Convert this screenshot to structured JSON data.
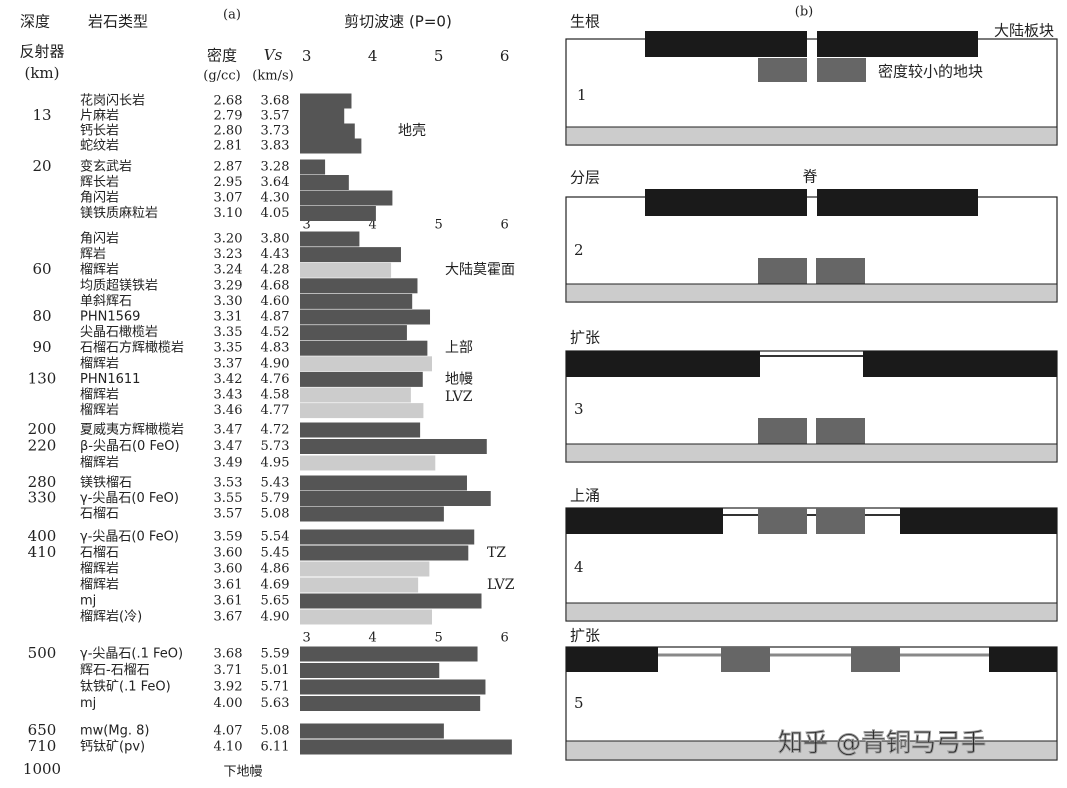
{
  "chart_data": {
    "type": "bar",
    "panel_label": "(a)",
    "title": "剪切波速 (P=0)",
    "headers": {
      "depth": "深度",
      "rock": "岩石类型",
      "reflector": "反射器",
      "km": "(km)",
      "density": "密度",
      "density_unit": "(g/cc)",
      "vs": "Vs",
      "vs_unit": "(km/s)"
    },
    "xlim": [
      2.9,
      6.1
    ],
    "xticks": [
      3,
      4,
      5,
      6
    ],
    "groups": [
      {
        "rows": [
          {
            "rock": "花岗闪长岩",
            "density": "2.68",
            "value": 3.68,
            "color": "#555555"
          },
          {
            "rock": "片麻岩",
            "density": "2.79",
            "value": 3.57,
            "color": "#555555",
            "depth": 13
          },
          {
            "rock": "钙长岩",
            "density": "2.80",
            "value": 3.73,
            "color": "#555555"
          },
          {
            "rock": "蛇纹岩",
            "density": "2.81",
            "value": 3.83,
            "color": "#555555"
          }
        ]
      },
      {
        "rows": [
          {
            "rock": "变玄武岩",
            "density": "2.87",
            "value": 3.28,
            "color": "#555555",
            "depth": 20
          },
          {
            "rock": "辉长岩",
            "density": "2.95",
            "value": 3.64,
            "color": "#555555"
          },
          {
            "rock": "角闪岩",
            "density": "3.07",
            "value": 4.3,
            "value_label": "4.30",
            "color": "#555555"
          },
          {
            "rock": "镁铁质麻粒岩",
            "density": "3.10",
            "value": 4.05,
            "color": "#555555"
          }
        ]
      },
      {
        "rows": [
          {
            "rock": "角闪岩",
            "density": "3.20",
            "value": 3.8,
            "value_label": "3.80",
            "color": "#555555"
          },
          {
            "rock": "辉岩",
            "density": "3.23",
            "value": 4.43,
            "color": "#555555"
          },
          {
            "rock": "榴辉岩",
            "density": "3.24",
            "value": 4.28,
            "color": "#cccccc",
            "depth": 60
          },
          {
            "rock": "均质超镁铁岩",
            "density": "3.29",
            "value": 4.68,
            "color": "#555555"
          },
          {
            "rock": "单斜辉石",
            "density": "3.30",
            "value": 4.6,
            "value_label": "4.60",
            "color": "#555555"
          },
          {
            "rock": "PHN1569",
            "density": "3.31",
            "value": 4.87,
            "color": "#555555",
            "depth": 80
          },
          {
            "rock": "尖晶石橄榄岩",
            "density": "3.35",
            "value": 4.52,
            "color": "#555555"
          },
          {
            "rock": "石榴石方辉橄榄岩",
            "density": "3.35",
            "value": 4.83,
            "color": "#555555",
            "depth": 90
          },
          {
            "rock": "榴辉岩",
            "density": "3.37",
            "value": 4.9,
            "value_label": "4.90",
            "color": "#cccccc"
          },
          {
            "rock": "PHN1611",
            "density": "3.42",
            "value": 4.76,
            "color": "#555555",
            "depth": 130
          },
          {
            "rock": "榴辉岩",
            "density": "3.43",
            "value": 4.58,
            "color": "#cccccc"
          },
          {
            "rock": "榴辉岩",
            "density": "3.46",
            "value": 4.77,
            "color": "#cccccc"
          }
        ]
      },
      {
        "rows": [
          {
            "rock": "夏威夷方辉橄榄岩",
            "density": "3.47",
            "value": 4.72,
            "color": "#555555",
            "depth": 200
          },
          {
            "rock": "β-尖晶石(0 FeO)",
            "density": "3.47",
            "value": 5.73,
            "color": "#555555",
            "depth": 220
          },
          {
            "rock": "榴辉岩",
            "density": "3.49",
            "value": 4.95,
            "color": "#cccccc"
          }
        ]
      },
      {
        "rows": [
          {
            "rock": "镁铁榴石",
            "density": "3.53",
            "value": 5.43,
            "color": "#555555",
            "depth": 280
          },
          {
            "rock": "γ-尖晶石(0 FeO)",
            "density": "3.55",
            "value": 5.79,
            "color": "#555555",
            "depth": 330
          },
          {
            "rock": "石榴石",
            "density": "3.57",
            "value": 5.08,
            "color": "#555555"
          }
        ]
      },
      {
        "rows": [
          {
            "rock": "γ-尖晶石(0 FeO)",
            "density": "3.59",
            "value": 5.54,
            "color": "#555555",
            "depth": 400
          },
          {
            "rock": "石榴石",
            "density": "3.60",
            "value": 5.45,
            "color": "#555555",
            "depth": 410
          },
          {
            "rock": "榴辉岩",
            "density": "3.60",
            "value": 4.86,
            "color": "#cccccc"
          },
          {
            "rock": "榴辉岩",
            "density": "3.61",
            "value": 4.69,
            "color": "#cccccc"
          },
          {
            "rock": "mj",
            "density": "3.61",
            "value": 5.65,
            "color": "#555555"
          },
          {
            "rock": "榴辉岩(冷)",
            "density": "3.67",
            "value": 4.9,
            "value_label": "4.90",
            "color": "#cccccc"
          }
        ]
      },
      {
        "rows": [
          {
            "rock": "γ-尖晶石(.1 FeO)",
            "density": "3.68",
            "value": 5.59,
            "color": "#555555",
            "depth": 500
          },
          {
            "rock": "辉石-石榴石",
            "density": "3.71",
            "value": 5.01,
            "color": "#555555"
          },
          {
            "rock": "钛铁矿(.1 FeO)",
            "density": "3.92",
            "value": 5.71,
            "color": "#555555"
          },
          {
            "rock": "mj",
            "density": "4.00",
            "value": 5.63,
            "color": "#555555"
          }
        ]
      },
      {
        "rows": [
          {
            "rock": "mw(Mg. 8)",
            "density": "4.07",
            "value": 5.08,
            "color": "#555555",
            "depth": 650
          },
          {
            "rock": "钙钛矿(pv)",
            "density": "4.10",
            "value": 6.11,
            "color": "#555555",
            "depth": 710
          }
        ]
      }
    ],
    "annotations": [
      "地壳",
      "大陆莫霍面",
      "上部",
      "地幔",
      "LVZ",
      "TZ",
      "LVZ"
    ],
    "footer": {
      "depth": 1000,
      "label": "下地幔"
    }
  },
  "diagram": {
    "panel_label": "(b)",
    "labels": {
      "plate": "大陆板块",
      "block": "密度较小的地块",
      "ridge": "脊"
    },
    "stages": [
      {
        "title": "生根",
        "number": "1"
      },
      {
        "title": "分层",
        "number": "2"
      },
      {
        "title": "扩张",
        "number": "3"
      },
      {
        "title": "上涌",
        "number": "4"
      },
      {
        "title": "扩张",
        "number": "5"
      }
    ],
    "watermark": "知乎 @青铜马弓手"
  }
}
